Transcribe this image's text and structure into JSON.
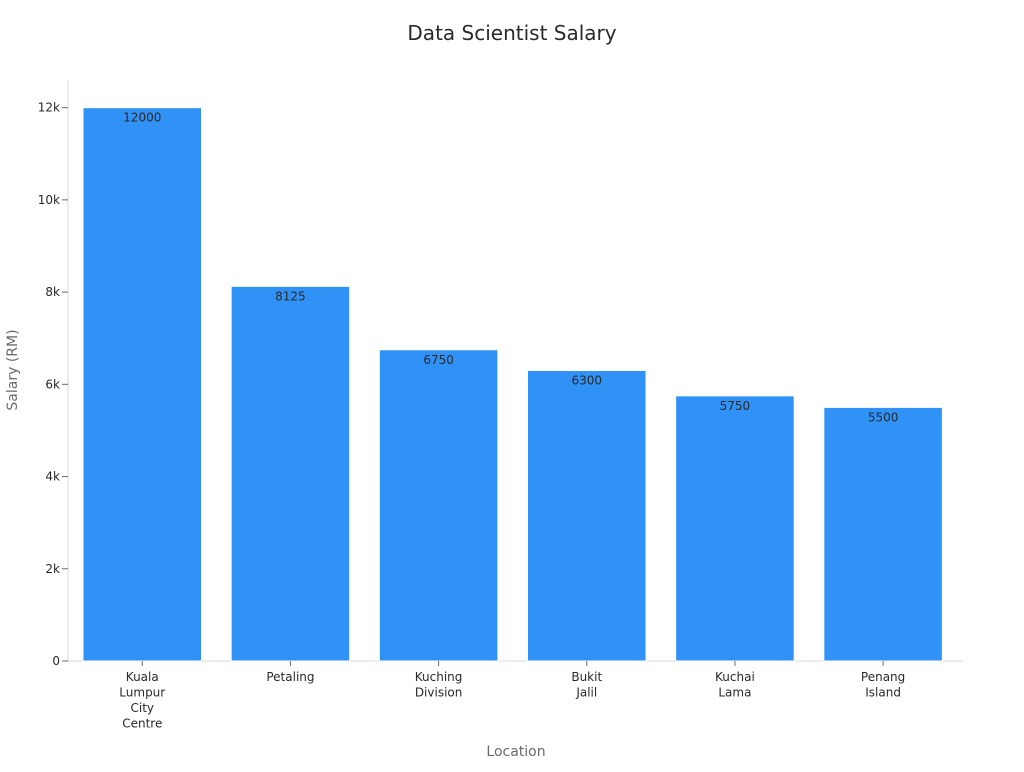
{
  "chart_data": {
    "type": "bar",
    "title": "Data Scientist Salary",
    "xlabel": "Location",
    "ylabel": "Salary (RM)",
    "categories": [
      [
        "Kuala",
        "Lumpur",
        "City",
        "Centre"
      ],
      [
        "Petaling"
      ],
      [
        "Kuching",
        "Division"
      ],
      [
        "Bukit",
        "Jalil"
      ],
      [
        "Kuchai",
        "Lama"
      ],
      [
        "Penang",
        "Island"
      ]
    ],
    "values": [
      12000,
      8125,
      6750,
      6300,
      5750,
      5500
    ],
    "data_labels": [
      "12000",
      "8125",
      "6750",
      "6300",
      "5750",
      "5500"
    ],
    "yticks": [
      0,
      2000,
      4000,
      6000,
      8000,
      10000,
      12000
    ],
    "ytick_labels": [
      "0",
      "2k",
      "4k",
      "6k",
      "8k",
      "10k",
      "12k"
    ],
    "ylim": [
      0,
      12600
    ],
    "grid": false,
    "legend": "none",
    "bar_color": "#3092f6"
  }
}
